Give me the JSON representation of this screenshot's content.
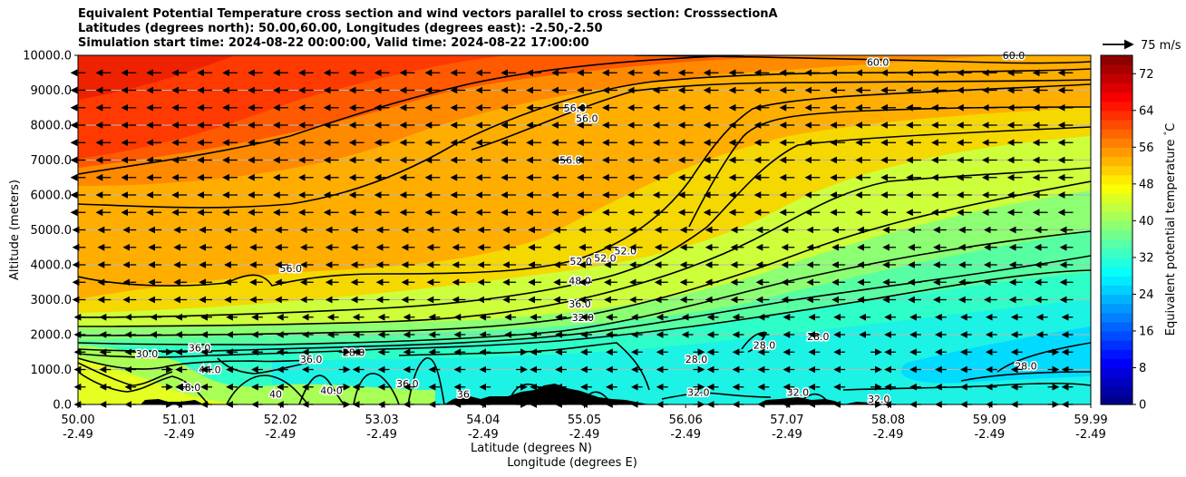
{
  "chart_data": {
    "type": "heatmap",
    "title_lines": [
      "Equivalent Potential Temperature cross section and wind vectors parallel to cross section: CrosssectionA",
      "Latitudes (degrees north): 50.00,60.00, Longitudes (degrees east): -2.50,-2.50",
      "Simulation start time: 2024-08-22 00:00:00, Valid time: 2024-08-22 17:00:00"
    ],
    "xlabel_line1": "Latitude (degrees N)",
    "xlabel_line2": "Longitude (degrees E)",
    "ylabel": "Altitude (meters)",
    "x_ticks": [
      {
        "lat": "50.00",
        "lon": "-2.49"
      },
      {
        "lat": "51.01",
        "lon": "-2.49"
      },
      {
        "lat": "52.02",
        "lon": "-2.49"
      },
      {
        "lat": "53.03",
        "lon": "-2.49"
      },
      {
        "lat": "54.04",
        "lon": "-2.49"
      },
      {
        "lat": "55.05",
        "lon": "-2.49"
      },
      {
        "lat": "56.06",
        "lon": "-2.49"
      },
      {
        "lat": "57.07",
        "lon": "-2.49"
      },
      {
        "lat": "58.08",
        "lon": "-2.49"
      },
      {
        "lat": "59.09",
        "lon": "-2.49"
      },
      {
        "lat": "59.99",
        "lon": "-2.49"
      }
    ],
    "y_ticks": [
      "0.0",
      "1000.0",
      "2000.0",
      "3000.0",
      "4000.0",
      "5000.0",
      "6000.0",
      "7000.0",
      "8000.0",
      "9000.0",
      "10000.0"
    ],
    "ylim": [
      0,
      10000
    ],
    "xlim": [
      50.0,
      59.99
    ],
    "grid": "horizontal",
    "colorbar": {
      "label": "Equivalent potential temperature $^\\circ$C",
      "label_text": "Equivalent potential temperature ",
      "label_degree": "°",
      "label_unit": "C",
      "ticks": [
        "0",
        "8",
        "16",
        "24",
        "32",
        "40",
        "48",
        "56",
        "64",
        "72"
      ],
      "range": [
        0,
        76
      ]
    },
    "quiver_key": {
      "label": "75 m/s",
      "value": 75
    },
    "wind_direction": "southward (negative along section)",
    "colormap": "jet",
    "field_samples": [
      {
        "lat": 50.5,
        "alt_m": 9000,
        "theta_e_c": 64
      },
      {
        "lat": 50.5,
        "alt_m": 5000,
        "theta_e_c": 57
      },
      {
        "lat": 50.5,
        "alt_m": 1500,
        "theta_e_c": 44
      },
      {
        "lat": 55.0,
        "alt_m": 9000,
        "theta_e_c": 60
      },
      {
        "lat": 55.0,
        "alt_m": 5000,
        "theta_e_c": 54
      },
      {
        "lat": 55.0,
        "alt_m": 1000,
        "theta_e_c": 32
      },
      {
        "lat": 59.5,
        "alt_m": 9000,
        "theta_e_c": 56
      },
      {
        "lat": 59.5,
        "alt_m": 5000,
        "theta_e_c": 46
      },
      {
        "lat": 59.5,
        "alt_m": 1000,
        "theta_e_c": 27
      }
    ],
    "contour_labels": [
      {
        "text": "60.0",
        "lat": 57.89,
        "alt_m": 9800
      },
      {
        "text": "60.0",
        "lat": 59.23,
        "alt_m": 10000
      },
      {
        "text": "56.0",
        "lat": 54.9,
        "alt_m": 8500
      },
      {
        "text": "56.0",
        "lat": 55.02,
        "alt_m": 8200
      },
      {
        "text": "56.0",
        "lat": 54.86,
        "alt_m": 7000
      },
      {
        "text": "56.0",
        "lat": 52.1,
        "alt_m": 3900
      },
      {
        "text": "52.0",
        "lat": 54.96,
        "alt_m": 4100
      },
      {
        "text": "52.0",
        "lat": 55.2,
        "alt_m": 4200
      },
      {
        "text": "52.0",
        "lat": 55.4,
        "alt_m": 4400
      },
      {
        "text": "48.0",
        "lat": 54.95,
        "alt_m": 3550
      },
      {
        "text": "36.0",
        "lat": 54.95,
        "alt_m": 2880
      },
      {
        "text": "32.0",
        "lat": 54.98,
        "alt_m": 2500
      },
      {
        "text": "36.0",
        "lat": 51.2,
        "alt_m": 1620
      },
      {
        "text": "30.0",
        "lat": 50.68,
        "alt_m": 1450
      },
      {
        "text": "28.0",
        "lat": 52.72,
        "alt_m": 1500
      },
      {
        "text": "36.0",
        "lat": 52.3,
        "alt_m": 1300
      },
      {
        "text": "44.0",
        "lat": 51.3,
        "alt_m": 1000
      },
      {
        "text": "48.0",
        "lat": 51.1,
        "alt_m": 500
      },
      {
        "text": "40.0",
        "lat": 52.5,
        "alt_m": 400
      },
      {
        "text": "40",
        "lat": 51.95,
        "alt_m": 300
      },
      {
        "text": "36.0",
        "lat": 53.25,
        "alt_m": 600
      },
      {
        "text": "36",
        "lat": 53.8,
        "alt_m": 300
      },
      {
        "text": "28.0",
        "lat": 56.1,
        "alt_m": 1300
      },
      {
        "text": "28.0",
        "lat": 56.77,
        "alt_m": 1700
      },
      {
        "text": "28.0",
        "lat": 57.3,
        "alt_m": 1950
      },
      {
        "text": "28.0",
        "lat": 59.35,
        "alt_m": 1100
      },
      {
        "text": "32.0",
        "lat": 56.12,
        "alt_m": 350
      },
      {
        "text": "32.0",
        "lat": 57.1,
        "alt_m": 350
      },
      {
        "text": "32.0",
        "lat": 57.9,
        "alt_m": 150
      }
    ]
  }
}
